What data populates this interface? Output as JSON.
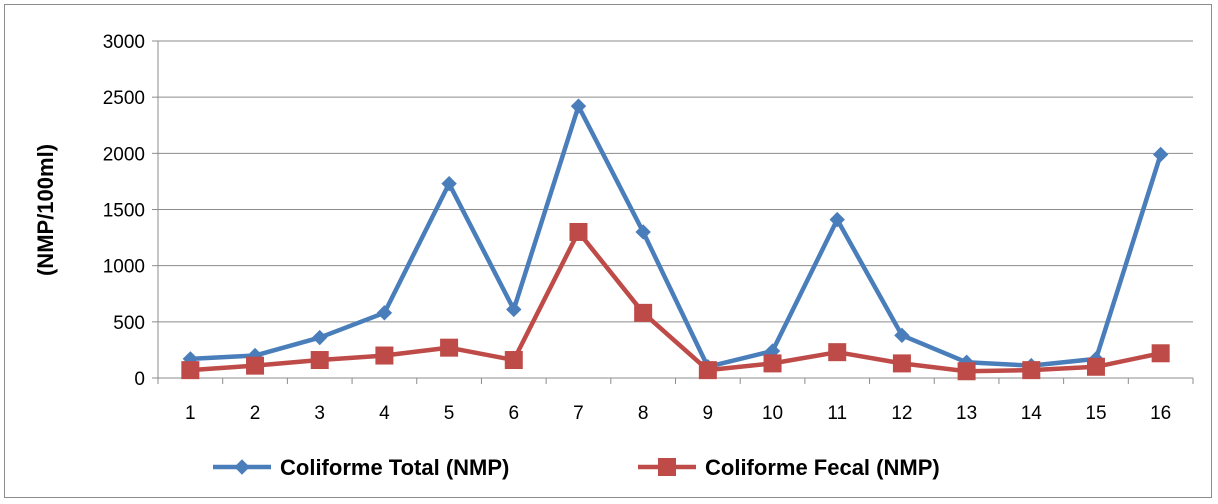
{
  "chart_data": {
    "type": "line",
    "title": "",
    "xlabel": "",
    "ylabel": "(NMP/100ml)",
    "categories": [
      "1",
      "2",
      "3",
      "4",
      "5",
      "6",
      "7",
      "8",
      "9",
      "10",
      "11",
      "12",
      "13",
      "14",
      "15",
      "16"
    ],
    "ylim": [
      0,
      3000
    ],
    "yticks": [
      0,
      500,
      1000,
      1500,
      2000,
      2500,
      3000
    ],
    "grid": "horizontal",
    "legend_position": "bottom",
    "series": [
      {
        "name": "Coliforme Total (NMP)",
        "color": "#4a7ebb",
        "marker": "diamond",
        "values": [
          170,
          200,
          360,
          580,
          1730,
          610,
          2420,
          1300,
          100,
          240,
          1410,
          380,
          140,
          110,
          170,
          1990
        ]
      },
      {
        "name": "Coliforme Fecal (NMP)",
        "color": "#be4b48",
        "marker": "square",
        "values": [
          70,
          110,
          160,
          200,
          270,
          160,
          1300,
          580,
          70,
          130,
          230,
          130,
          60,
          70,
          100,
          220
        ]
      }
    ]
  }
}
